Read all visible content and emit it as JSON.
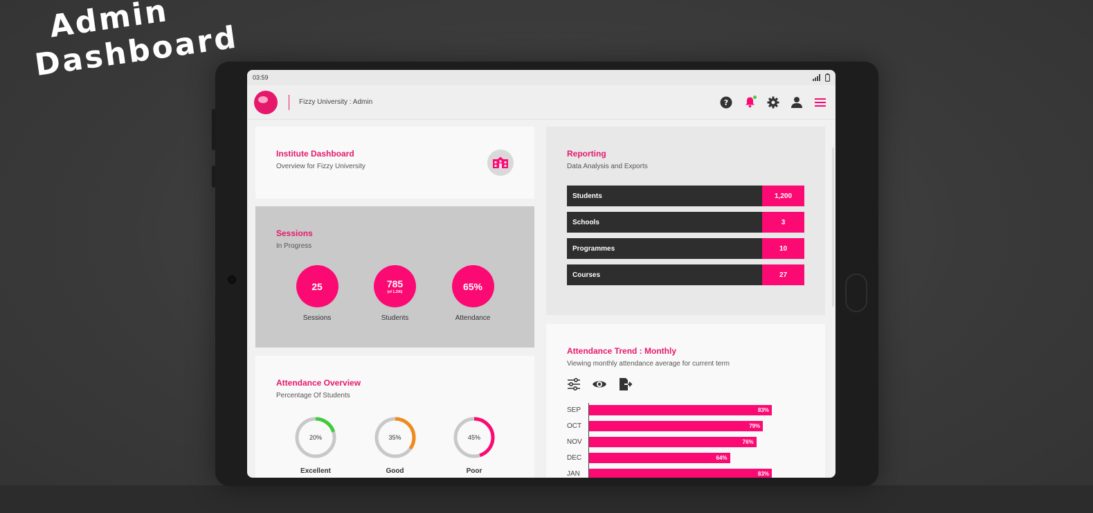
{
  "hero": {
    "line1": "Admin",
    "line2": "Dashboard"
  },
  "status_bar": {
    "time": "03:59"
  },
  "header": {
    "title": "Fizzy University : Admin"
  },
  "institute": {
    "title": "Institute Dashboard",
    "subtitle": "Overview for Fizzy University"
  },
  "sessions": {
    "title": "Sessions",
    "subtitle": "In Progress",
    "items": [
      {
        "value": "25",
        "note": "",
        "label": "Sessions"
      },
      {
        "value": "785",
        "note": "(of 1,200)",
        "label": "Students"
      },
      {
        "value": "65%",
        "note": "",
        "label": "Attendance"
      }
    ]
  },
  "attendance": {
    "title": "Attendance Overview",
    "subtitle": "Percentage Of Students",
    "items": [
      {
        "pct_label": "20%",
        "fraction": 0.2,
        "color": "#3ecb3a",
        "label": "Excellent"
      },
      {
        "pct_label": "35%",
        "fraction": 0.35,
        "color": "#f08a1c",
        "label": "Good"
      },
      {
        "pct_label": "45%",
        "fraction": 0.45,
        "color": "#fb0a73",
        "label": "Poor"
      }
    ]
  },
  "reporting": {
    "title": "Reporting",
    "subtitle": "Data Analysis and Exports",
    "rows": [
      {
        "label": "Students",
        "value": "1,200"
      },
      {
        "label": "Schools",
        "value": "3"
      },
      {
        "label": "Programmes",
        "value": "10"
      },
      {
        "label": "Courses",
        "value": "27"
      }
    ]
  },
  "trend": {
    "title": "Attendance Trend : Monthly",
    "subtitle": "Viewing monthly attendance average for current term"
  },
  "chart_data": {
    "type": "bar",
    "orientation": "horizontal",
    "categories": [
      "SEP",
      "OCT",
      "NOV",
      "DEC",
      "JAN"
    ],
    "values": [
      83,
      79,
      76,
      64,
      83
    ],
    "value_labels": [
      "83%",
      "79%",
      "76%",
      "64%",
      "83%"
    ],
    "xlim": [
      0,
      100
    ]
  },
  "colors": {
    "accent": "#fb0a73",
    "dark": "#2e2e2e",
    "excellent": "#3ecb3a",
    "good": "#f08a1c"
  },
  "icons": [
    "help-icon",
    "bell-icon",
    "gear-icon",
    "user-icon",
    "menu-icon",
    "school-icon",
    "filter-icon",
    "eye-icon",
    "export-icon"
  ]
}
